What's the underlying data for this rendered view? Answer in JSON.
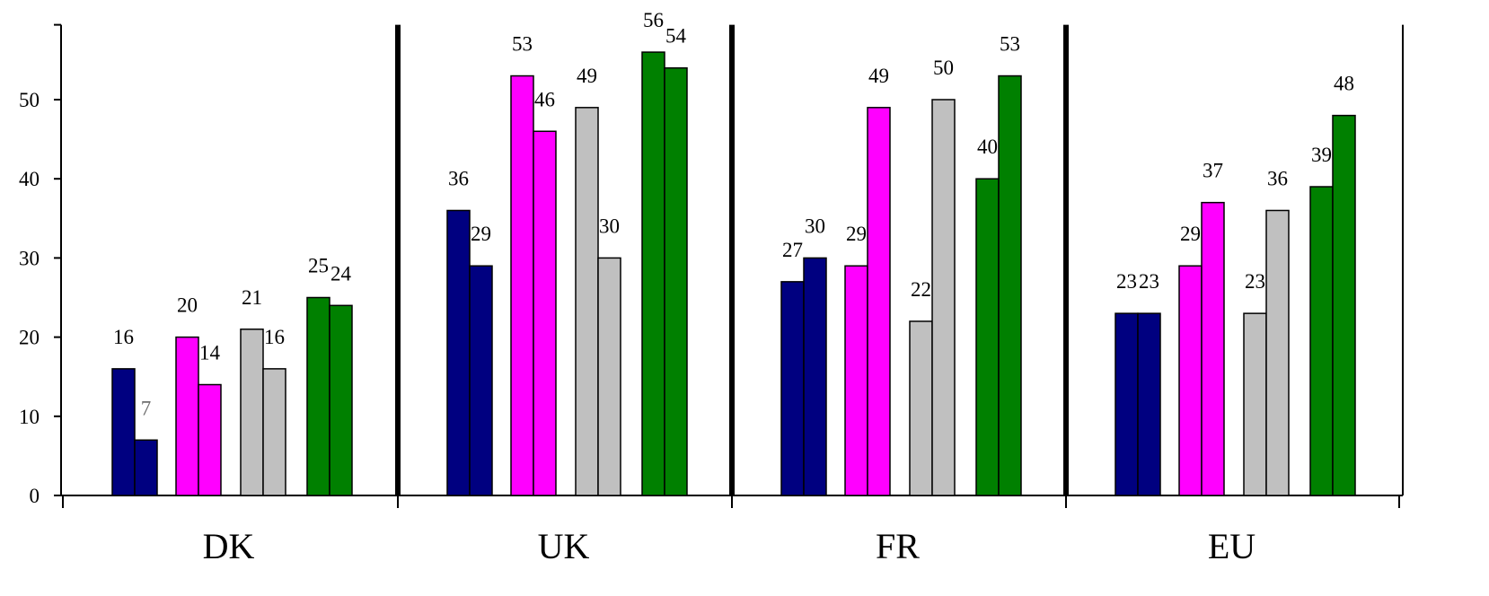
{
  "chart_data": {
    "type": "bar",
    "title": "",
    "xlabel": "",
    "ylabel": "",
    "ylim": [
      0,
      59
    ],
    "yticks": [
      0,
      10,
      20,
      30,
      40,
      50
    ],
    "grid": false,
    "legend": "none",
    "groups": [
      {
        "label": "DK",
        "pairs": [
          {
            "color": "#000080",
            "values": [
              16,
              7
            ]
          },
          {
            "color": "#ff00ff",
            "values": [
              20,
              14
            ]
          },
          {
            "color": "#c0c0c0",
            "values": [
              21,
              16
            ]
          },
          {
            "color": "#008000",
            "values": [
              25,
              24
            ]
          }
        ]
      },
      {
        "label": "UK",
        "pairs": [
          {
            "color": "#000080",
            "values": [
              36,
              29
            ]
          },
          {
            "color": "#ff00ff",
            "values": [
              53,
              46
            ]
          },
          {
            "color": "#c0c0c0",
            "values": [
              49,
              30
            ]
          },
          {
            "color": "#008000",
            "values": [
              56,
              54
            ]
          }
        ]
      },
      {
        "label": "FR",
        "pairs": [
          {
            "color": "#000080",
            "values": [
              27,
              30
            ]
          },
          {
            "color": "#ff00ff",
            "values": [
              29,
              49
            ]
          },
          {
            "color": "#c0c0c0",
            "values": [
              22,
              50
            ]
          },
          {
            "color": "#008000",
            "values": [
              40,
              53
            ]
          }
        ]
      },
      {
        "label": "EU",
        "pairs": [
          {
            "color": "#000080",
            "values": [
              23,
              23
            ]
          },
          {
            "color": "#ff00ff",
            "values": [
              29,
              37
            ]
          },
          {
            "color": "#c0c0c0",
            "values": [
              23,
              36
            ]
          },
          {
            "color": "#008000",
            "values": [
              39,
              48
            ]
          }
        ]
      }
    ]
  }
}
